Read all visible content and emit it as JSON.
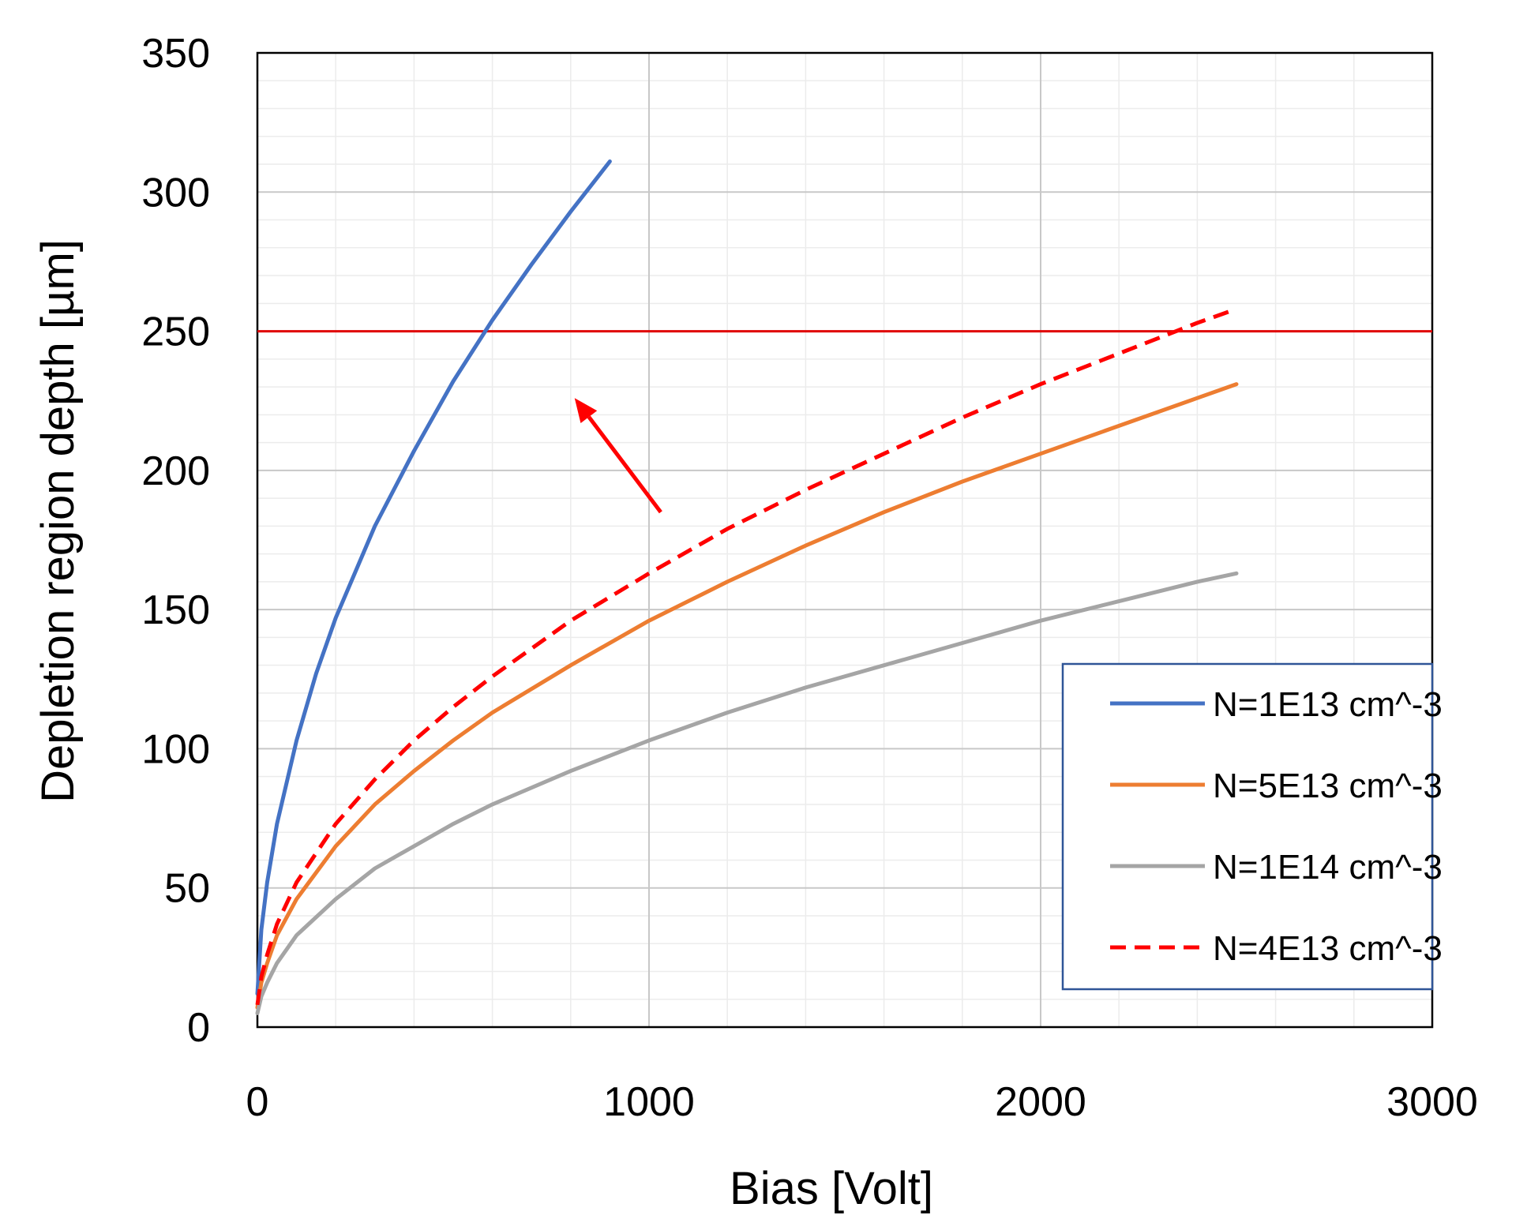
{
  "chart_data": {
    "type": "line",
    "xlabel": "Bias [Volt]",
    "ylabel": "Depletion region depth  [µm]",
    "xlim": [
      0,
      3000
    ],
    "ylim": [
      0,
      350
    ],
    "x_ticks": [
      "0",
      "1000",
      "2000",
      "3000"
    ],
    "y_ticks": [
      "0",
      "50",
      "100",
      "150",
      "200",
      "250",
      "300",
      "350"
    ],
    "grid": true,
    "minor_grid": true,
    "legend_position": "bottom-right",
    "series": [
      {
        "name": "N=1E13 cm^-3",
        "color": "#4472C4",
        "dash": "solid",
        "x": [
          0,
          10,
          25,
          50,
          100,
          150,
          200,
          300,
          400,
          500,
          600,
          700,
          800,
          900
        ],
        "y": [
          12,
          35,
          52,
          73,
          103,
          127,
          147,
          180,
          207,
          232,
          254,
          274,
          293,
          311
        ]
      },
      {
        "name": "N=5E13 cm^-3",
        "color": "#ED7D31",
        "dash": "solid",
        "x": [
          0,
          10,
          25,
          50,
          100,
          200,
          300,
          400,
          500,
          600,
          800,
          1000,
          1200,
          1400,
          1600,
          1800,
          2000,
          2200,
          2400,
          2500
        ],
        "y": [
          7,
          16,
          23,
          33,
          46,
          65,
          80,
          92,
          103,
          113,
          130,
          146,
          160,
          173,
          185,
          196,
          206,
          216,
          226,
          231
        ]
      },
      {
        "name": "N=1E14 cm^-3",
        "color": "#A5A5A5",
        "dash": "solid",
        "x": [
          0,
          10,
          25,
          50,
          100,
          200,
          300,
          400,
          500,
          600,
          800,
          1000,
          1200,
          1400,
          1600,
          1800,
          2000,
          2200,
          2400,
          2500
        ],
        "y": [
          5,
          11,
          16,
          23,
          33,
          46,
          57,
          65,
          73,
          80,
          92,
          103,
          113,
          122,
          130,
          138,
          146,
          153,
          160,
          163
        ]
      },
      {
        "name": "N=4E13 cm^-3",
        "color": "#FF0000",
        "dash": "dashed",
        "x": [
          0,
          10,
          25,
          50,
          100,
          200,
          300,
          400,
          500,
          600,
          800,
          1000,
          1200,
          1400,
          1600,
          1800,
          2000,
          2200,
          2400,
          2500
        ],
        "y": [
          8,
          18,
          26,
          37,
          52,
          73,
          89,
          103,
          115,
          126,
          146,
          163,
          179,
          193,
          206,
          219,
          231,
          242,
          253,
          258
        ]
      }
    ],
    "reference_line": {
      "y": 250,
      "color": "#E00000"
    },
    "arrow": {
      "from": [
        1030,
        185
      ],
      "to": [
        810,
        226
      ],
      "color": "#FF0000"
    }
  }
}
